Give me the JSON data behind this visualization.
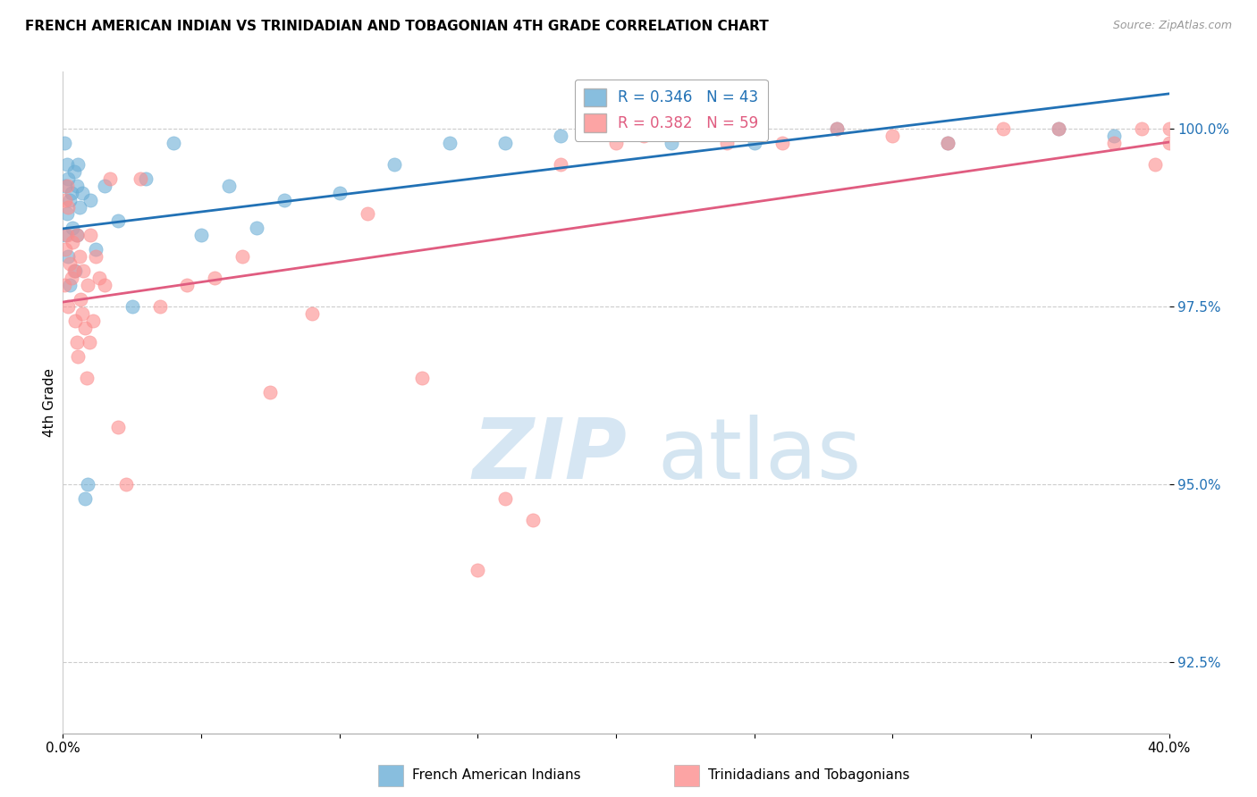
{
  "title": "FRENCH AMERICAN INDIAN VS TRINIDADIAN AND TOBAGONIAN 4TH GRADE CORRELATION CHART",
  "source": "Source: ZipAtlas.com",
  "ylabel": "4th Grade",
  "y_ticks": [
    92.5,
    95.0,
    97.5,
    100.0
  ],
  "y_tick_labels": [
    "92.5%",
    "95.0%",
    "97.5%",
    "100.0%"
  ],
  "xlim": [
    0.0,
    40.0
  ],
  "ylim": [
    91.5,
    100.8
  ],
  "legend_blue_r": "R = 0.346",
  "legend_blue_n": "N = 43",
  "legend_pink_r": "R = 0.382",
  "legend_pink_n": "N = 59",
  "blue_color": "#6baed6",
  "pink_color": "#fc8d8d",
  "blue_line_color": "#2171b5",
  "pink_line_color": "#e05c80",
  "blue_points_x": [
    0.05,
    0.1,
    0.1,
    0.15,
    0.15,
    0.2,
    0.2,
    0.25,
    0.25,
    0.3,
    0.35,
    0.4,
    0.45,
    0.5,
    0.5,
    0.55,
    0.6,
    0.7,
    0.8,
    0.9,
    1.0,
    1.2,
    1.5,
    2.0,
    2.5,
    3.0,
    4.0,
    5.0,
    6.0,
    7.0,
    8.0,
    10.0,
    12.0,
    14.0,
    16.0,
    18.0,
    20.0,
    22.0,
    25.0,
    28.0,
    32.0,
    36.0,
    38.0
  ],
  "blue_points_y": [
    99.8,
    98.5,
    99.2,
    99.5,
    98.8,
    99.3,
    98.2,
    99.0,
    97.8,
    99.1,
    98.6,
    99.4,
    98.0,
    99.2,
    98.5,
    99.5,
    98.9,
    99.1,
    94.8,
    95.0,
    99.0,
    98.3,
    99.2,
    98.7,
    97.5,
    99.3,
    99.8,
    98.5,
    99.2,
    98.6,
    99.0,
    99.1,
    99.5,
    99.8,
    99.8,
    99.9,
    100.0,
    99.8,
    99.8,
    100.0,
    99.8,
    100.0,
    99.9
  ],
  "pink_points_x": [
    0.05,
    0.1,
    0.1,
    0.15,
    0.15,
    0.2,
    0.2,
    0.25,
    0.3,
    0.35,
    0.4,
    0.45,
    0.5,
    0.5,
    0.55,
    0.6,
    0.65,
    0.7,
    0.75,
    0.8,
    0.85,
    0.9,
    0.95,
    1.0,
    1.1,
    1.2,
    1.3,
    1.5,
    1.7,
    2.0,
    2.3,
    2.8,
    3.5,
    4.5,
    5.5,
    6.5,
    7.5,
    9.0,
    11.0,
    13.0,
    15.0,
    16.0,
    17.0,
    18.0,
    20.0,
    21.0,
    22.0,
    24.0,
    26.0,
    28.0,
    30.0,
    32.0,
    34.0,
    36.0,
    38.0,
    39.0,
    39.5,
    40.0,
    40.0
  ],
  "pink_points_y": [
    97.8,
    99.0,
    98.3,
    99.2,
    98.5,
    98.9,
    97.5,
    98.1,
    97.9,
    98.4,
    98.0,
    97.3,
    98.5,
    97.0,
    96.8,
    98.2,
    97.6,
    97.4,
    98.0,
    97.2,
    96.5,
    97.8,
    97.0,
    98.5,
    97.3,
    98.2,
    97.9,
    97.8,
    99.3,
    95.8,
    95.0,
    99.3,
    97.5,
    97.8,
    97.9,
    98.2,
    96.3,
    97.4,
    98.8,
    96.5,
    93.8,
    94.8,
    94.5,
    99.5,
    99.8,
    99.9,
    100.0,
    99.8,
    99.8,
    100.0,
    99.9,
    99.8,
    100.0,
    100.0,
    99.8,
    100.0,
    99.5,
    99.8,
    100.0
  ]
}
